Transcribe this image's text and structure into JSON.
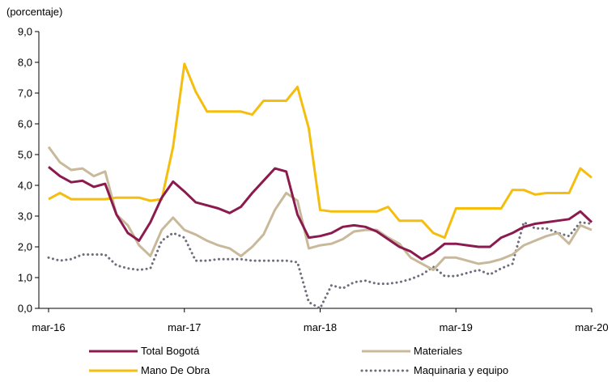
{
  "chart_data": {
    "type": "line",
    "unit_label": "(porcentaje)",
    "ylim": [
      0,
      9
    ],
    "yticks": [
      "0,0",
      "1,0",
      "2,0",
      "3,0",
      "4,0",
      "5,0",
      "6,0",
      "7,0",
      "8,0",
      "9,0"
    ],
    "x_labels": [
      "mar-16",
      "mar-17",
      "mar-18",
      "mar-19",
      "mar-20"
    ],
    "x_label_months": [
      0,
      12,
      24,
      36,
      48
    ],
    "grid": false,
    "legend_position": "bottom",
    "series": [
      {
        "name": "Total Bogotá",
        "color": "#8B1A4F",
        "style": "solid",
        "values": [
          4.6,
          4.3,
          4.1,
          4.15,
          3.95,
          4.05,
          3.05,
          2.45,
          2.2,
          2.8,
          3.6,
          4.12,
          3.8,
          3.45,
          3.35,
          3.25,
          3.1,
          3.3,
          3.75,
          4.15,
          4.55,
          4.45,
          3.05,
          2.3,
          2.35,
          2.45,
          2.65,
          2.7,
          2.65,
          2.5,
          2.25,
          2.0,
          1.85,
          1.6,
          1.8,
          2.1,
          2.1,
          2.05,
          2.0,
          2.0,
          2.3,
          2.45,
          2.65,
          2.75,
          2.8,
          2.85,
          2.9,
          3.15,
          2.8
        ]
      },
      {
        "name": "Materiales",
        "color": "#C9B99B",
        "style": "solid",
        "values": [
          5.25,
          4.75,
          4.5,
          4.55,
          4.3,
          4.45,
          3.05,
          2.7,
          2.05,
          1.7,
          2.55,
          2.95,
          2.55,
          2.4,
          2.2,
          2.05,
          1.95,
          1.7,
          2.0,
          2.4,
          3.2,
          3.75,
          3.5,
          1.95,
          2.05,
          2.1,
          2.25,
          2.5,
          2.55,
          2.55,
          2.3,
          2.1,
          1.65,
          1.45,
          1.25,
          1.65,
          1.65,
          1.55,
          1.45,
          1.5,
          1.6,
          1.75,
          2.05,
          2.2,
          2.35,
          2.45,
          2.1,
          2.7,
          2.55
        ]
      },
      {
        "name": "Mano De Obra",
        "color": "#F5BE0F",
        "style": "solid",
        "values": [
          3.55,
          3.75,
          3.55,
          3.55,
          3.55,
          3.55,
          3.6,
          3.6,
          3.6,
          3.5,
          3.55,
          5.25,
          7.95,
          7.05,
          6.4,
          6.4,
          6.4,
          6.4,
          6.3,
          6.75,
          6.75,
          6.75,
          7.2,
          5.85,
          3.2,
          3.15,
          3.15,
          3.15,
          3.15,
          3.15,
          3.3,
          2.85,
          2.85,
          2.85,
          2.45,
          2.3,
          3.25,
          3.25,
          3.25,
          3.25,
          3.25,
          3.85,
          3.85,
          3.7,
          3.75,
          3.75,
          3.75,
          4.55,
          4.25
        ]
      },
      {
        "name": "Maquinaria y equipo",
        "color": "#6D6D7B",
        "style": "dotted",
        "values": [
          1.65,
          1.55,
          1.6,
          1.75,
          1.75,
          1.75,
          1.4,
          1.3,
          1.25,
          1.3,
          2.2,
          2.45,
          2.3,
          1.55,
          1.55,
          1.6,
          1.6,
          1.6,
          1.55,
          1.55,
          1.55,
          1.55,
          1.5,
          0.2,
          0.0,
          0.75,
          0.65,
          0.85,
          0.9,
          0.8,
          0.8,
          0.85,
          0.95,
          1.1,
          1.35,
          1.05,
          1.05,
          1.15,
          1.25,
          1.1,
          1.3,
          1.45,
          2.8,
          2.6,
          2.6,
          2.45,
          2.35,
          2.8,
          2.75
        ]
      }
    ]
  }
}
